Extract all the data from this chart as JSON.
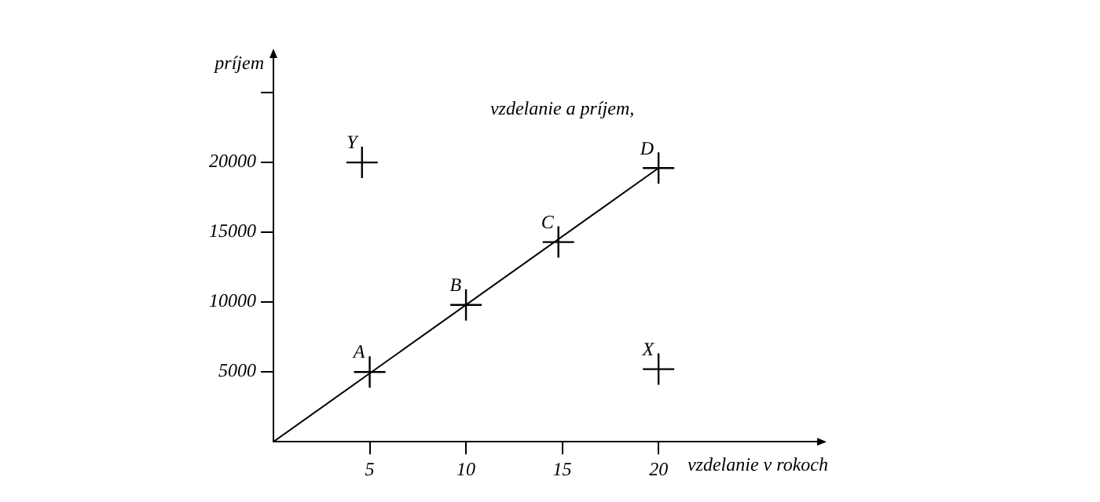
{
  "chart_data": {
    "type": "scatter",
    "title": "vzdelanie a príjem,",
    "xlabel": "vzdelanie v rokoch",
    "ylabel": "príjem",
    "xlim": [
      0,
      28.4
    ],
    "ylim": [
      0,
      27700
    ],
    "xticks": [
      5,
      10,
      15,
      20
    ],
    "yticks": [
      5000,
      10000,
      15000,
      20000,
      {
        "value": 25000,
        "label": null
      }
    ],
    "grid": false,
    "legend": false,
    "marker": "cross",
    "series": [
      {
        "type": "scatter",
        "color": "#000000",
        "x": [
          5,
          10,
          14.8,
          20,
          4.6,
          20
        ],
        "values": [
          5000,
          9800,
          14300,
          19600,
          20000,
          5200
        ]
      },
      {
        "type": "line",
        "color": "#000000",
        "marker": "none",
        "line_style": "solid",
        "x": [
          0,
          20
        ],
        "values": [
          0,
          19600
        ]
      }
    ],
    "annotations": [
      {
        "text": "A",
        "x": 5,
        "y": 5000
      },
      {
        "text": "B",
        "x": 10,
        "y": 9800
      },
      {
        "text": "C",
        "x": 14.8,
        "y": 14300
      },
      {
        "text": "D",
        "x": 20,
        "y": 19600
      },
      {
        "text": "Y",
        "x": 4.6,
        "y": 20000
      },
      {
        "text": "X",
        "x": 20,
        "y": 5200
      }
    ]
  }
}
